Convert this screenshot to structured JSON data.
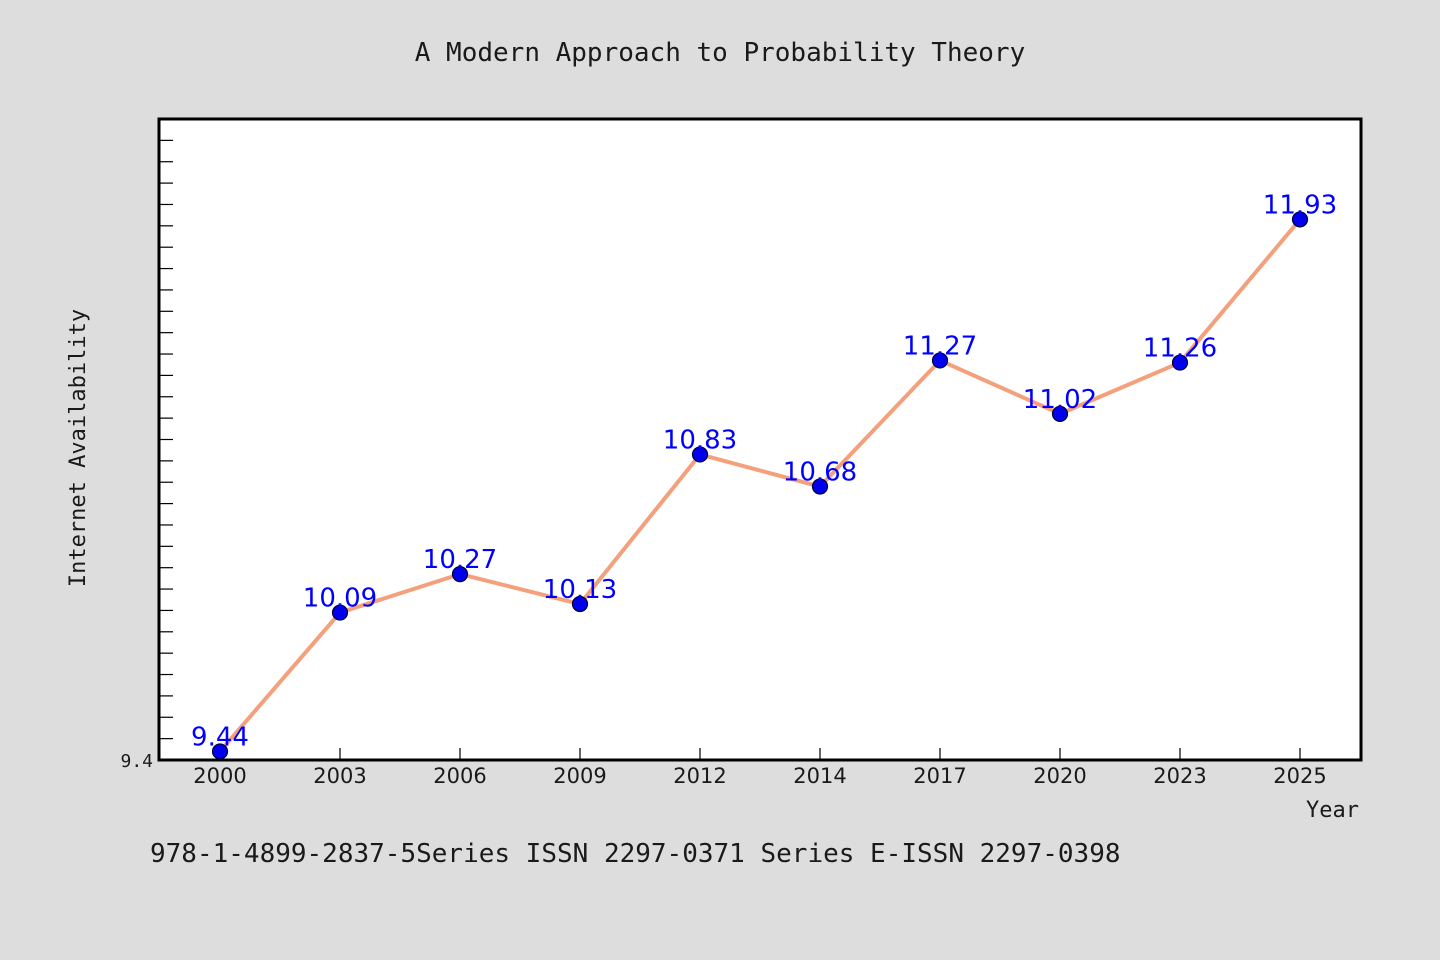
{
  "colors": {
    "background": "#dddddd",
    "plot_background": "#ffffff",
    "line": "#f4a07c",
    "marker": "#0000ee",
    "data_label": "#0000ff",
    "text": "#1a1a1a"
  },
  "footer_text": "978-1-4899-2837-5Series ISSN 2297-0371 Series E-ISSN 2297-0398",
  "chart_data": {
    "type": "line",
    "title": "A Modern Approach to Probability Theory",
    "xlabel": "Year",
    "ylabel": "Internet Availability",
    "categories": [
      "2000",
      "2003",
      "2006",
      "2009",
      "2012",
      "2014",
      "2017",
      "2020",
      "2023",
      "2025"
    ],
    "series": [
      {
        "values": [
          9.44,
          10.09,
          10.27,
          10.13,
          10.83,
          10.68,
          11.27,
          11.02,
          11.26,
          11.93
        ],
        "labels": [
          "9.44",
          "10.09",
          "10.27",
          "10.13",
          "10.83",
          "10.68",
          "11.27",
          "11.02",
          "11.26",
          "11.93"
        ]
      }
    ],
    "ylim": [
      9.4,
      12.4
    ],
    "y_tick_step": 0.1,
    "y_tick_labels": [
      "9.4"
    ],
    "grid": false,
    "legend": "none",
    "marker": "circle"
  }
}
